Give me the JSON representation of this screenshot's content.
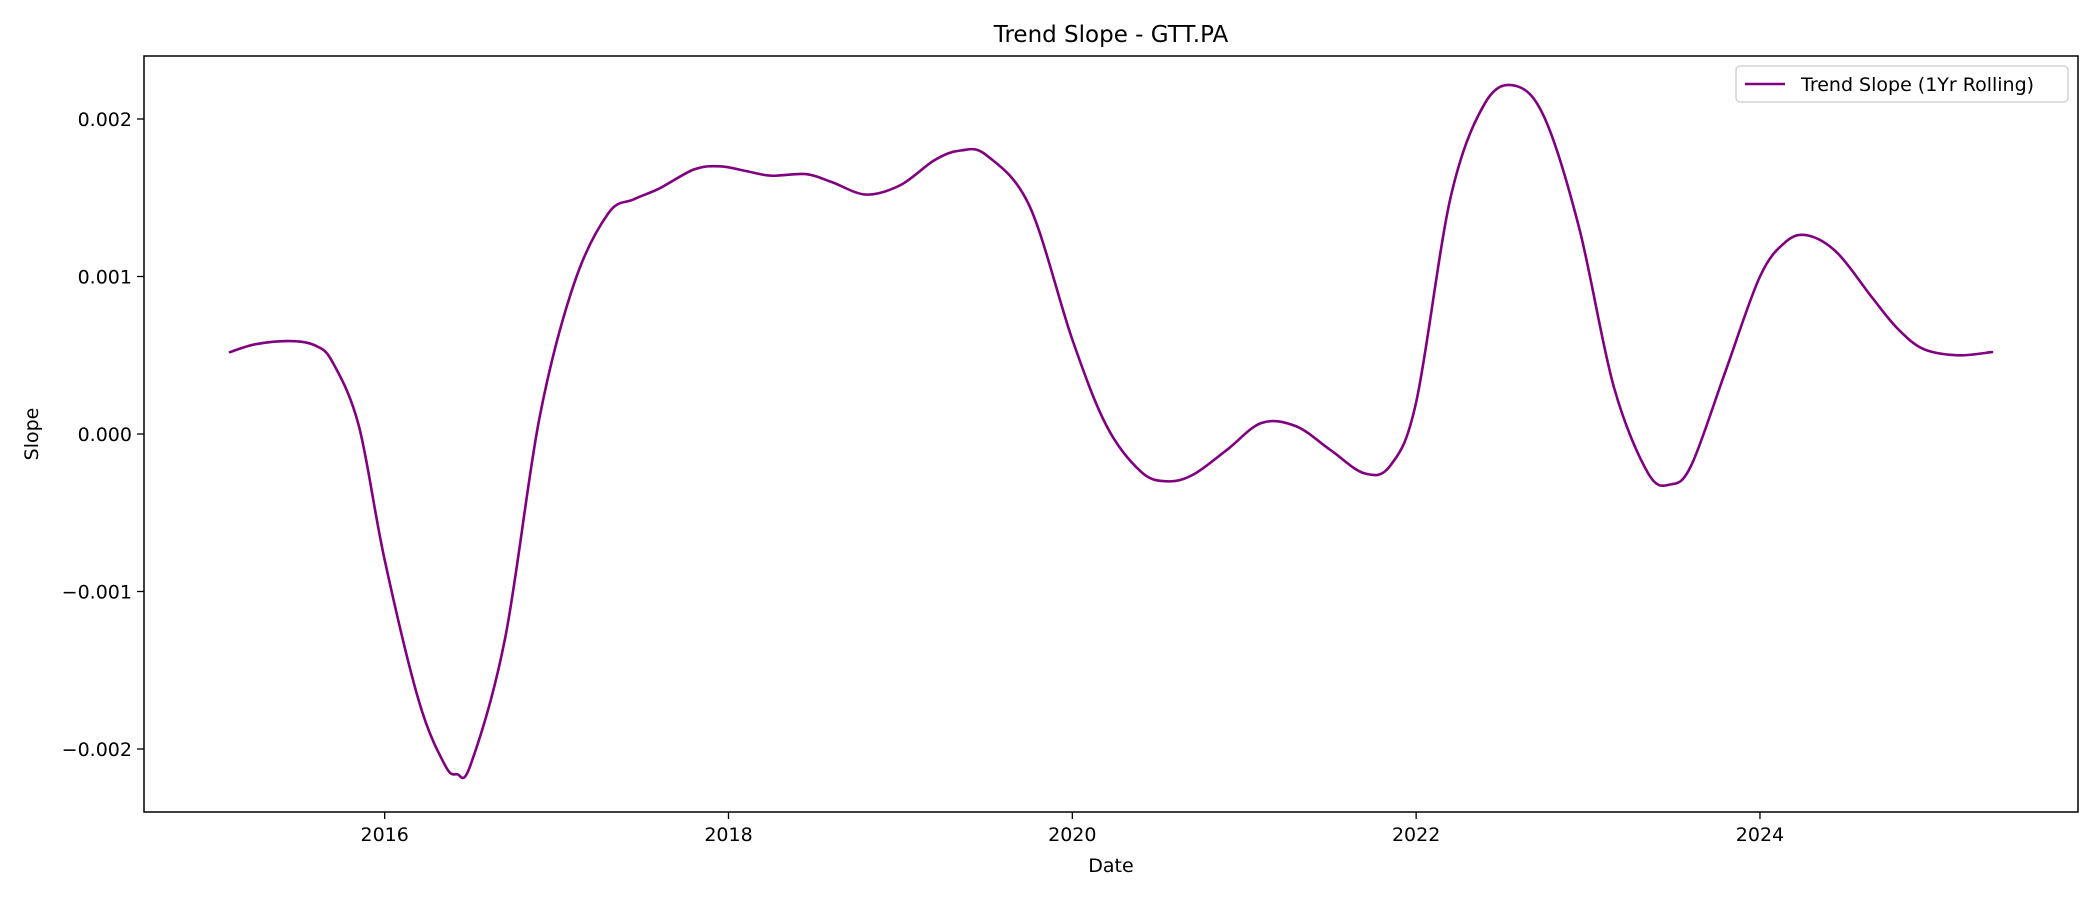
{
  "chart_data": {
    "type": "line",
    "title": "Trend Slope - GTT.PA",
    "xlabel": "Date",
    "ylabel": "Slope",
    "xlim": [
      2014.6,
      2025.85
    ],
    "ylim": [
      -0.0024,
      0.0024
    ],
    "x_ticks": [
      2016,
      2018,
      2020,
      2022,
      2024
    ],
    "x_tick_labels": [
      "2016",
      "2018",
      "2020",
      "2022",
      "2024"
    ],
    "y_ticks": [
      -0.002,
      -0.001,
      0.0,
      0.001,
      0.002
    ],
    "y_tick_labels": [
      "−0.002",
      "−0.001",
      "0.000",
      "0.001",
      "0.002"
    ],
    "grid": false,
    "legend_position": "top-right",
    "series": [
      {
        "name": "Trend Slope (1Yr Rolling)",
        "color": "#800080",
        "x": [
          2015.1,
          2015.25,
          2015.45,
          2015.6,
          2015.7,
          2015.85,
          2016.0,
          2016.2,
          2016.35,
          2016.42,
          2016.5,
          2016.7,
          2016.9,
          2017.1,
          2017.3,
          2017.45,
          2017.6,
          2017.8,
          2017.95,
          2018.1,
          2018.25,
          2018.45,
          2018.6,
          2018.8,
          2019.0,
          2019.2,
          2019.35,
          2019.5,
          2019.75,
          2020.0,
          2020.2,
          2020.4,
          2020.55,
          2020.7,
          2020.9,
          2021.1,
          2021.3,
          2021.5,
          2021.7,
          2021.85,
          2022.0,
          2022.2,
          2022.4,
          2022.58,
          2022.75,
          2022.95,
          2023.15,
          2023.35,
          2023.48,
          2023.6,
          2023.8,
          2024.0,
          2024.15,
          2024.28,
          2024.45,
          2024.65,
          2024.8,
          2024.95,
          2025.15,
          2025.35
        ],
        "y": [
          0.00052,
          0.00057,
          0.00059,
          0.00056,
          0.00045,
          5e-05,
          -0.0008,
          -0.0017,
          -0.0021,
          -0.00216,
          -0.0021,
          -0.0013,
          0.0001,
          0.00095,
          0.0014,
          0.00149,
          0.00156,
          0.00168,
          0.0017,
          0.00167,
          0.00164,
          0.00165,
          0.0016,
          0.00152,
          0.00158,
          0.00174,
          0.0018,
          0.00177,
          0.00145,
          0.0006,
          5e-05,
          -0.00024,
          -0.0003,
          -0.00026,
          -0.0001,
          7e-05,
          5e-05,
          -0.0001,
          -0.00025,
          -0.0002,
          0.0002,
          0.0015,
          0.0021,
          0.00221,
          0.002,
          0.0013,
          0.0003,
          -0.00025,
          -0.00032,
          -0.0002,
          0.0004,
          0.001,
          0.00122,
          0.00126,
          0.00115,
          0.00087,
          0.00067,
          0.00054,
          0.0005,
          0.00052
        ]
      }
    ]
  }
}
